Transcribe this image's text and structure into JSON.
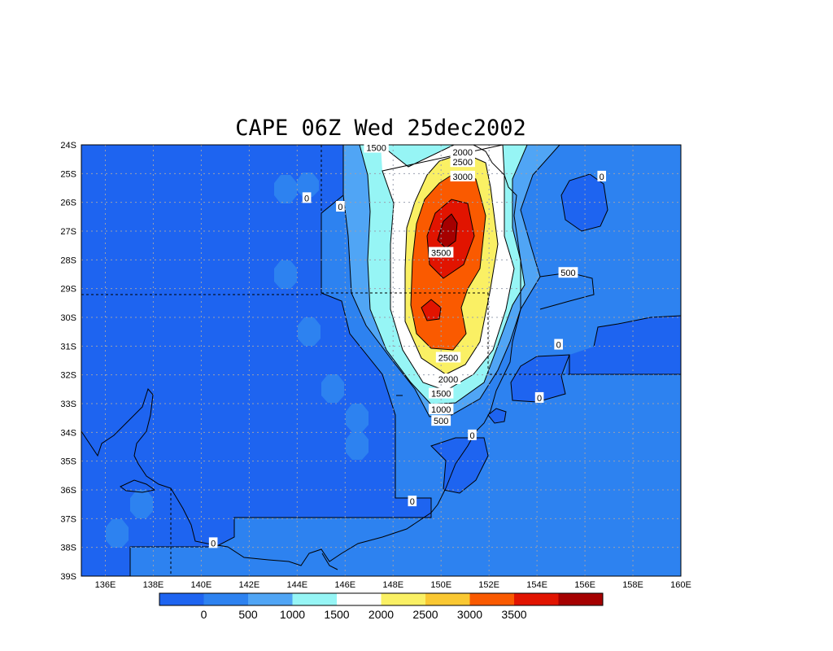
{
  "title": "CAPE 06Z Wed 25dec2002",
  "map": {
    "lon_range": [
      135,
      160
    ],
    "lat_range": [
      -39,
      -24
    ],
    "lat_ticks": [
      {
        "lat": -24,
        "label": "24S"
      },
      {
        "lat": -25,
        "label": "25S"
      },
      {
        "lat": -26,
        "label": "26S"
      },
      {
        "lat": -27,
        "label": "27S"
      },
      {
        "lat": -28,
        "label": "28S"
      },
      {
        "lat": -29,
        "label": "29S"
      },
      {
        "lat": -30,
        "label": "30S"
      },
      {
        "lat": -31,
        "label": "31S"
      },
      {
        "lat": -32,
        "label": "32S"
      },
      {
        "lat": -33,
        "label": "33S"
      },
      {
        "lat": -34,
        "label": "34S"
      },
      {
        "lat": -35,
        "label": "35S"
      },
      {
        "lat": -36,
        "label": "36S"
      },
      {
        "lat": -37,
        "label": "37S"
      },
      {
        "lat": -38,
        "label": "38S"
      },
      {
        "lat": -39,
        "label": "39S"
      }
    ],
    "lon_ticks": [
      {
        "lon": 136,
        "label": "136E"
      },
      {
        "lon": 138,
        "label": "138E"
      },
      {
        "lon": 140,
        "label": "140E"
      },
      {
        "lon": 142,
        "label": "142E"
      },
      {
        "lon": 144,
        "label": "144E"
      },
      {
        "lon": 146,
        "label": "146E"
      },
      {
        "lon": 148,
        "label": "148E"
      },
      {
        "lon": 150,
        "label": "150E"
      },
      {
        "lon": 152,
        "label": "152E"
      },
      {
        "lon": 154,
        "label": "154E"
      },
      {
        "lon": 156,
        "label": "156E"
      },
      {
        "lon": 158,
        "label": "158E"
      },
      {
        "lon": 160,
        "label": "160E"
      }
    ],
    "contour_labels": [
      {
        "text": "1500",
        "lon": 147.3,
        "lat": -24.1
      },
      {
        "text": "2000",
        "lon": 150.9,
        "lat": -24.25
      },
      {
        "text": "2500",
        "lon": 150.9,
        "lat": -24.6
      },
      {
        "text": "3000",
        "lon": 150.9,
        "lat": -25.1
      },
      {
        "text": "3500",
        "lon": 150.0,
        "lat": -27.75
      },
      {
        "text": "2500",
        "lon": 150.3,
        "lat": -31.4
      },
      {
        "text": "2000",
        "lon": 150.3,
        "lat": -32.15
      },
      {
        "text": "1500",
        "lon": 150.0,
        "lat": -32.65
      },
      {
        "text": "1000",
        "lon": 150.0,
        "lat": -33.2
      },
      {
        "text": "500",
        "lon": 150.0,
        "lat": -33.6
      },
      {
        "text": "0",
        "lon": 144.4,
        "lat": -25.85
      },
      {
        "text": "0",
        "lon": 145.8,
        "lat": -26.15
      },
      {
        "text": "0",
        "lon": 156.7,
        "lat": -25.1
      },
      {
        "text": "500",
        "lon": 155.3,
        "lat": -28.45
      },
      {
        "text": "0",
        "lon": 154.9,
        "lat": -30.95
      },
      {
        "text": "0",
        "lon": 154.1,
        "lat": -32.8
      },
      {
        "text": "0",
        "lon": 151.3,
        "lat": -34.1
      },
      {
        "text": "0",
        "lon": 148.8,
        "lat": -36.4
      },
      {
        "text": "0",
        "lon": 140.5,
        "lat": -37.85
      }
    ]
  },
  "colorbar": {
    "colors": [
      "#1e64f0",
      "#2d82f0",
      "#50a5f5",
      "#96f5f5",
      "#ffffff",
      "#faf064",
      "#fac832",
      "#fa5a00",
      "#e11400",
      "#a50000"
    ],
    "labels": [
      "0",
      "500",
      "1000",
      "1500",
      "2000",
      "2500",
      "3000",
      "3500"
    ]
  }
}
